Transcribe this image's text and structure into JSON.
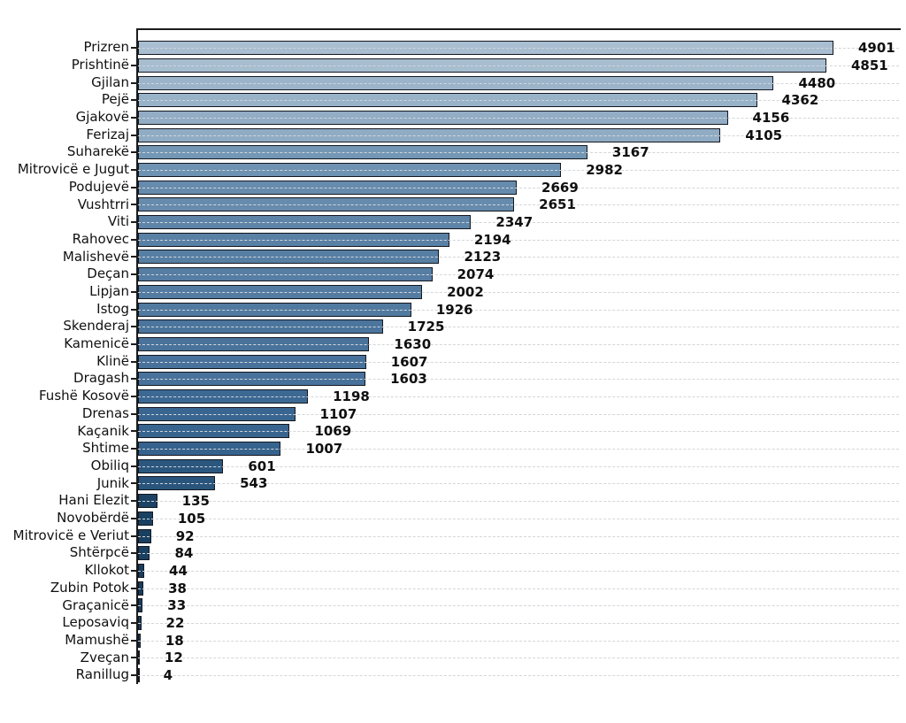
{
  "chart_data": {
    "type": "bar",
    "orientation": "horizontal",
    "title": "",
    "xlabel": "",
    "ylabel": "",
    "xlim": [
      0,
      5100
    ],
    "grid": "dashed light-gray horizontal line at each category row",
    "legend": null,
    "bar_value_labels_shown": true,
    "categories": [
      "Prizren",
      "Prishtinë",
      "Gjilan",
      "Pejë",
      "Gjakovë",
      "Ferizaj",
      "Suharekë",
      "Mitrovicë e Jugut",
      "Podujevë",
      "Vushtrri",
      "Viti",
      "Rahovec",
      "Malishevë",
      "Deçan",
      "Lipjan",
      "Istog",
      "Skenderaj",
      "Kamenicë",
      "Klinë",
      "Dragash",
      "Fushë Kosovë",
      "Drenas",
      "Kaçanik",
      "Shtime",
      "Obiliq",
      "Junik",
      "Hani Elezit",
      "Novobërdë",
      "Mitrovicë e Veriut",
      "Shtërpcë",
      "Kllokot",
      "Zubin Potok",
      "Graçanicë",
      "Leposaviq",
      "Mamushë",
      "Zveçan",
      "Ranillug"
    ],
    "values": [
      4901,
      4851,
      4480,
      4362,
      4156,
      4105,
      3167,
      2982,
      2669,
      2651,
      2347,
      2194,
      2123,
      2074,
      2002,
      1926,
      1725,
      1630,
      1607,
      1603,
      1198,
      1107,
      1069,
      1007,
      601,
      543,
      135,
      105,
      92,
      84,
      44,
      38,
      33,
      22,
      18,
      12,
      4
    ]
  },
  "style": {
    "bar_color_stops": [
      [
        0.0,
        "#173c5c"
      ],
      [
        0.12,
        "#2b577f"
      ],
      [
        0.24,
        "#3b6893"
      ],
      [
        0.48,
        "#5e84a8"
      ],
      [
        0.65,
        "#7397b5"
      ],
      [
        1.0,
        "#a9bed1"
      ]
    ],
    "bar_edge_color": "#14171f",
    "grid_color": "#d2d6da",
    "spine_color": "#1c1c1c",
    "label_color": "#111111",
    "value_label_color": "#0f0f0f",
    "background_color": "#ffffff"
  }
}
